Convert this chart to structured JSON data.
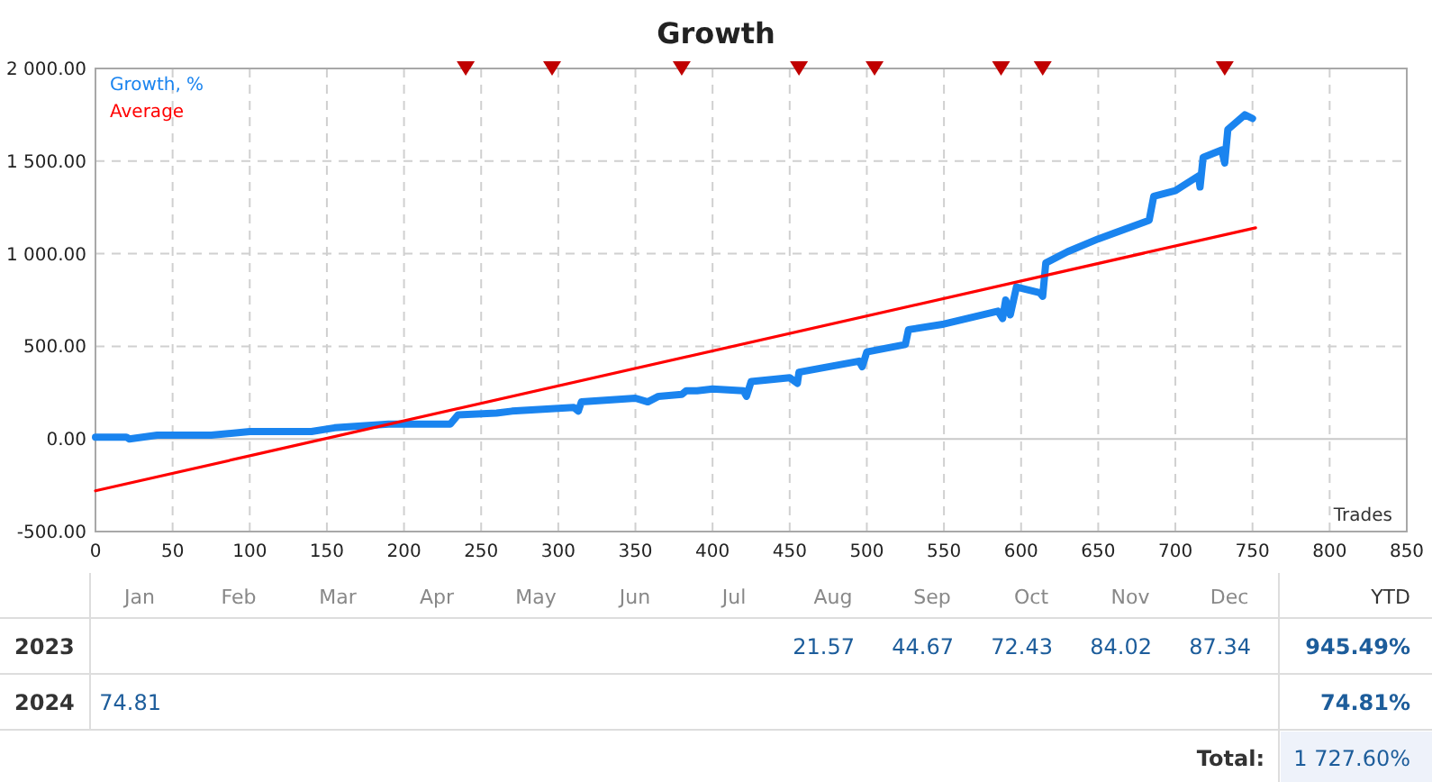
{
  "chart_data": [
    {
      "type": "line",
      "title": "Growth",
      "xlabel": "Trades",
      "xlim": [
        0,
        850
      ],
      "xticks": [
        0,
        50,
        100,
        150,
        200,
        250,
        300,
        350,
        400,
        450,
        500,
        550,
        600,
        650,
        700,
        750,
        800,
        850
      ],
      "ylim": [
        -500,
        2000
      ],
      "yticks": [
        {
          "value": -500,
          "label": "-500.00"
        },
        {
          "value": 0,
          "label": "0.00"
        },
        {
          "value": 500,
          "label": "500.00"
        },
        {
          "value": 1000,
          "label": "1 000.00"
        },
        {
          "value": 1500,
          "label": "1 500.00"
        },
        {
          "value": 2000,
          "label": "2 000.00"
        }
      ],
      "grid": true,
      "legend": "top left",
      "series": [
        {
          "name": "Growth, %",
          "color": "#1a84ef",
          "x": [
            0,
            20,
            22,
            40,
            75,
            100,
            140,
            155,
            190,
            230,
            235,
            260,
            270,
            290,
            310,
            313,
            315,
            350,
            358,
            365,
            380,
            383,
            390,
            400,
            420,
            422,
            425,
            450,
            455,
            456,
            495,
            497,
            500,
            525,
            527,
            550,
            585,
            588,
            590,
            593,
            597,
            612,
            614,
            616,
            630,
            650,
            683,
            686,
            700,
            715,
            716,
            718,
            730,
            732,
            734,
            745,
            750
          ],
          "values": [
            10,
            10,
            0,
            20,
            20,
            40,
            40,
            60,
            80,
            80,
            130,
            140,
            150,
            160,
            170,
            150,
            200,
            220,
            200,
            230,
            240,
            260,
            260,
            270,
            260,
            230,
            310,
            330,
            300,
            360,
            420,
            390,
            470,
            510,
            590,
            620,
            690,
            650,
            750,
            670,
            820,
            790,
            770,
            950,
            1010,
            1080,
            1180,
            1310,
            1340,
            1420,
            1360,
            1520,
            1560,
            1490,
            1670,
            1750,
            1730
          ]
        },
        {
          "name": "Average",
          "color": "#ff0000",
          "x": [
            0,
            752
          ],
          "values": [
            -280,
            1140
          ]
        },
        {
          "type": "scatter",
          "marker": "triangle",
          "color": "#c00000",
          "x": [
            240,
            296,
            380,
            456,
            505,
            587,
            614,
            732
          ],
          "values": [
            2000,
            2000,
            2000,
            2000,
            2000,
            2000,
            2000,
            2000
          ]
        }
      ]
    },
    {
      "type": "heatmap",
      "categories": [
        "Jan",
        "Feb",
        "Mar",
        "Apr",
        "May",
        "Jun",
        "Jul",
        "Aug",
        "Sep",
        "Oct",
        "Nov",
        "Dec"
      ],
      "y_categories": [
        "2023",
        "2024"
      ],
      "y2label": "YTD",
      "data_labels": true,
      "y2_categories": [
        "945.49%",
        "74.81%"
      ],
      "cells": [
        [
          null,
          null,
          null,
          null,
          null,
          null,
          null,
          21.57,
          44.67,
          72.43,
          84.02,
          87.34
        ],
        [
          74.81,
          null,
          null,
          null,
          null,
          null,
          null,
          null,
          null,
          null,
          null,
          null
        ]
      ],
      "annotations": [
        "Total:",
        "1 727.60%"
      ]
    }
  ]
}
